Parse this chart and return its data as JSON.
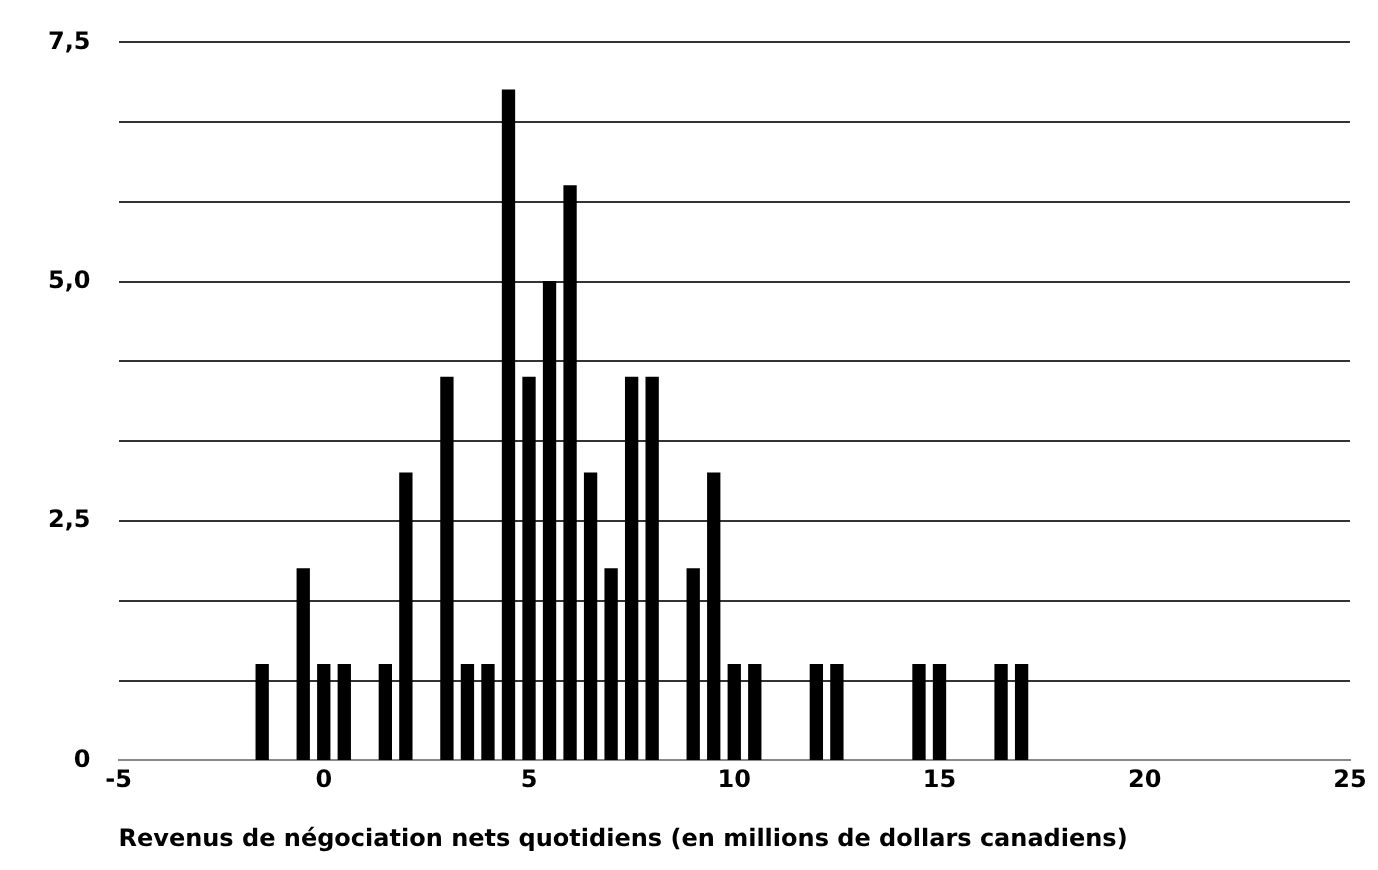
{
  "chart_data": {
    "type": "bar",
    "xlabel": "Revenus de négociation nets quotidiens (en millions de dollars canadiens)",
    "x": [
      -1.5,
      -0.5,
      0,
      0.5,
      1.5,
      2,
      3,
      3.5,
      4,
      4.5,
      5,
      5.5,
      6,
      6.5,
      7,
      7.5,
      8,
      9,
      9.5,
      10,
      10.5,
      12,
      12.5,
      14.5,
      15,
      16.5,
      17
    ],
    "values": [
      1,
      2,
      1,
      1,
      1,
      3,
      4,
      1,
      1,
      7,
      4,
      5,
      6,
      3,
      2,
      4,
      4,
      2,
      3,
      1,
      1,
      1,
      1,
      1,
      1,
      1,
      1
    ],
    "color": "#000000",
    "xlim": [
      -5,
      25
    ],
    "xticks": [
      -5,
      0,
      5,
      10,
      15,
      20,
      25
    ],
    "ylim": [
      0,
      7.5
    ],
    "yticks": [
      0,
      {
        "value": 0.833,
        "label": null
      },
      {
        "value": 1.667,
        "label": null
      },
      {
        "value": 2.5,
        "label": "2,5"
      },
      {
        "value": 3.333,
        "label": null
      },
      {
        "value": 4.167,
        "label": null
      },
      {
        "value": 5,
        "label": "5,0"
      },
      {
        "value": 5.833,
        "label": null
      },
      {
        "value": 6.667,
        "label": null
      },
      {
        "value": 7.5,
        "label": "7,5"
      }
    ],
    "grid": "y",
    "legend": false
  }
}
